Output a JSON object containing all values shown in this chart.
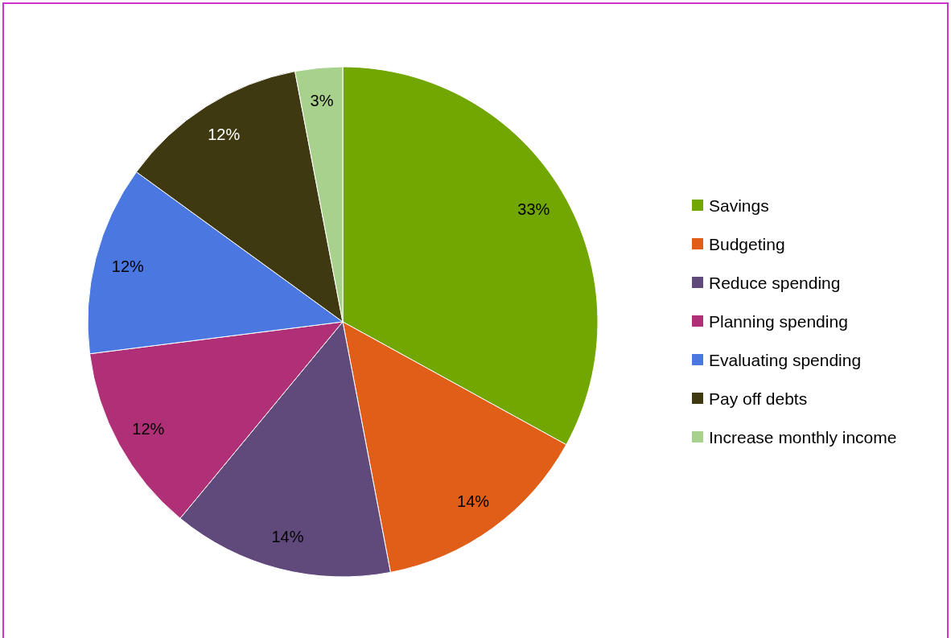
{
  "chart_data": {
    "type": "pie",
    "categories": [
      "Savings",
      "Budgeting",
      "Reduce spending",
      "Planning spending",
      "Evaluating spending",
      "Pay off debts",
      "Increase monthly income"
    ],
    "values": [
      33,
      14,
      14,
      12,
      12,
      12,
      3
    ],
    "colors": [
      "#72a600",
      "#e05e17",
      "#604a7b",
      "#b03077",
      "#4a78e0",
      "#3f3912",
      "#a9d18e"
    ],
    "value_labels": [
      "33%",
      "14%",
      "14%",
      "12%",
      "12%",
      "12%",
      "3%"
    ],
    "legend": "right"
  }
}
